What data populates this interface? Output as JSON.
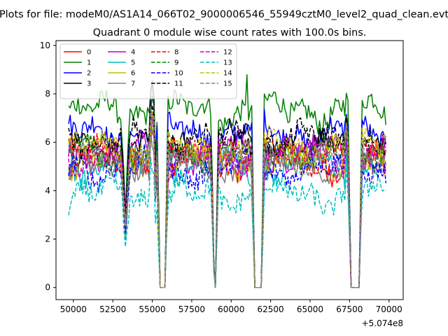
{
  "chart_data": {
    "type": "line",
    "suptitle": "Plots for file: modeM0/AS1A14_066T02_9000006546_55949cztM0_level2_quad_clean.evt",
    "title": "Quadrant 0 module wise count rates with 100.0s bins.",
    "xlabel": "",
    "ylabel": "",
    "x_offset_label": "+5.074e8",
    "xlim": [
      48900,
      70900
    ],
    "ylim": [
      -0.5,
      10.2
    ],
    "x_ticks": [
      50000,
      52500,
      55000,
      57500,
      60000,
      62500,
      65000,
      67500,
      70000
    ],
    "x_tick_labels": [
      "50000",
      "52500",
      "55000",
      "57500",
      "60000",
      "62500",
      "65000",
      "67500",
      "70000"
    ],
    "y_ticks": [
      0,
      2,
      4,
      6,
      8,
      10
    ],
    "y_tick_labels": [
      "0",
      "2",
      "4",
      "6",
      "8",
      "10"
    ],
    "x_start": 49700,
    "x_end": 69800,
    "bin": 100,
    "gaps": [
      [
        55500,
        55800
      ],
      [
        58950,
        59050
      ],
      [
        61500,
        61900
      ],
      [
        67600,
        68100
      ]
    ],
    "legend_position": "upper-left",
    "series": [
      {
        "name": "0",
        "color": "#ff0000",
        "dash": "solid",
        "base": 5.2
      },
      {
        "name": "1",
        "color": "#008000",
        "dash": "solid",
        "base": 7.3
      },
      {
        "name": "2",
        "color": "#0000ff",
        "dash": "solid",
        "base": 6.4
      },
      {
        "name": "3",
        "color": "#000000",
        "dash": "solid",
        "base": 5.9
      },
      {
        "name": "4",
        "color": "#bf00bf",
        "dash": "solid",
        "base": 5.6
      },
      {
        "name": "5",
        "color": "#00bfbf",
        "dash": "solid",
        "base": 5.0
      },
      {
        "name": "6",
        "color": "#bfbf00",
        "dash": "solid",
        "base": 5.3
      },
      {
        "name": "7",
        "color": "#808080",
        "dash": "solid",
        "base": 5.0
      },
      {
        "name": "8",
        "color": "#ff0000",
        "dash": "dashed",
        "base": 5.5
      },
      {
        "name": "9",
        "color": "#008000",
        "dash": "dashed",
        "base": 5.6
      },
      {
        "name": "10",
        "color": "#0000ff",
        "dash": "dashed",
        "base": 4.9
      },
      {
        "name": "11",
        "color": "#000000",
        "dash": "dashed",
        "base": 6.1
      },
      {
        "name": "12",
        "color": "#bf00bf",
        "dash": "dashed",
        "base": 5.4
      },
      {
        "name": "13",
        "color": "#00bfbf",
        "dash": "dashed",
        "base": 3.8
      },
      {
        "name": "14",
        "color": "#bfbf00",
        "dash": "dashed",
        "base": 5.7
      },
      {
        "name": "15",
        "color": "#808080",
        "dash": "dashed",
        "base": 5.4
      }
    ]
  }
}
